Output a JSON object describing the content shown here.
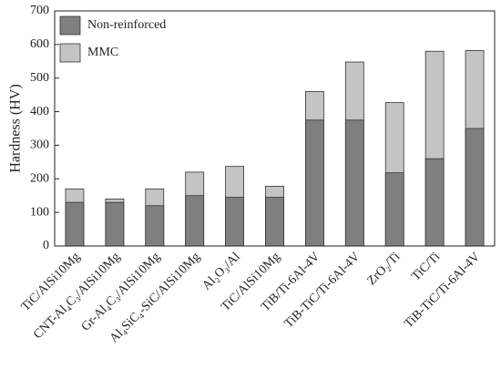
{
  "chart_data": {
    "type": "bar",
    "ylabel": "Hardness (HV)",
    "categories": [
      "TiC/AlSi10Mg",
      "CNT-Al₄C₃/AlSi10Mg",
      "Gr-Al₄C₃/AlSi10Mg",
      "Al₄SiC₄-SiC/AlSi10Mg",
      "Al₂O₃/Al",
      "TiC/AlSi10Mg",
      "TiB/Ti-6Al-4V",
      "TiB-TiC/Ti-6Al-4V",
      "ZrO₂/Ti",
      "TiC/Ti",
      "TiB-TiC/Ti-6Al-4V"
    ],
    "series": [
      {
        "name": "Non-reinforced",
        "color": "#7f7f7f",
        "values": [
          130,
          130,
          120,
          150,
          145,
          145,
          375,
          375,
          218,
          260,
          350
        ]
      },
      {
        "name": "MMC",
        "color": "#c4c4c4",
        "values": [
          170,
          140,
          170,
          220,
          237,
          178,
          460,
          548,
          427,
          580,
          582
        ]
      }
    ],
    "ylim": [
      0,
      700
    ],
    "yticks": [
      0,
      100,
      200,
      300,
      400,
      500,
      600,
      700
    ],
    "legend": "upper left"
  }
}
